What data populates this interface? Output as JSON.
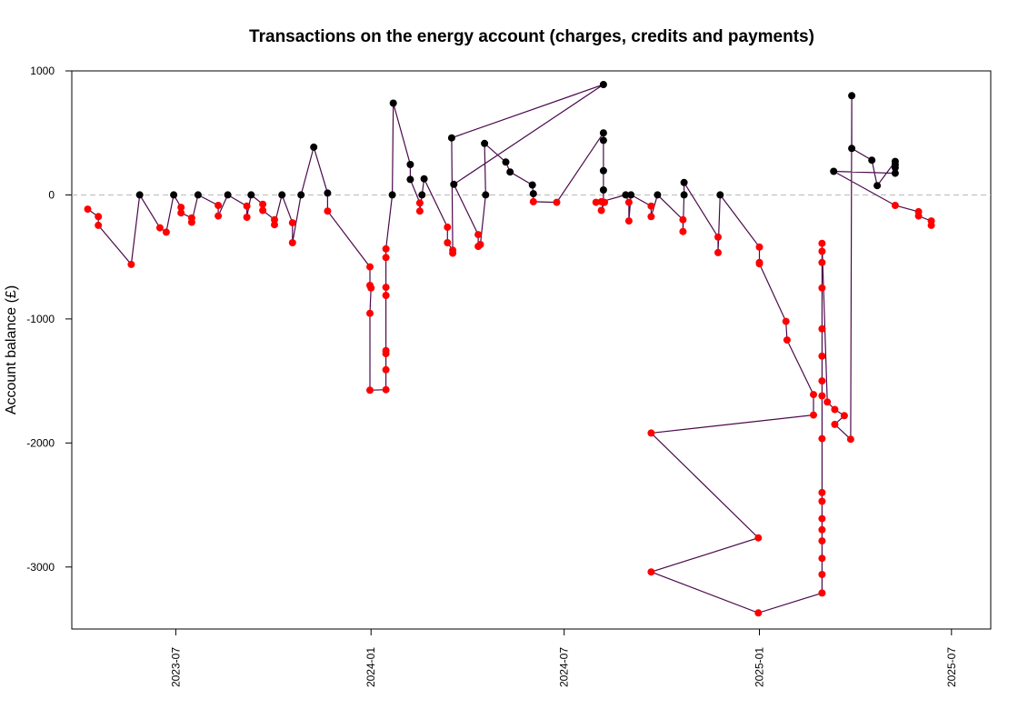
{
  "chart_data": {
    "type": "line",
    "title": "Transactions on the energy account (charges, credits and payments)",
    "xlabel": "",
    "ylabel": "Account balance (£)",
    "x_scale": "date",
    "xlim": [
      "2023-03-25",
      "2025-08-07"
    ],
    "ylim": [
      -3500,
      1000
    ],
    "x_ticks": [
      "2023-07-01",
      "2024-01-01",
      "2024-07-01",
      "2025-01-01",
      "2025-07-01"
    ],
    "x_tick_labels": [
      "2023-07",
      "2024-01",
      "2024-07",
      "2025-01",
      "2025-07"
    ],
    "y_ticks": [
      -3000,
      -2000,
      -1000,
      0,
      1000
    ],
    "y_tick_labels": [
      "-3000",
      "-2000",
      "-1000",
      "0",
      "1000"
    ],
    "grid": false,
    "reference_line": {
      "y": 0,
      "style": "dashed",
      "color": "#bbbbbb"
    },
    "colors": {
      "line": "#4b0a4b",
      "negative": "#ff0000",
      "non_negative": "#000000"
    },
    "series": [
      {
        "points": [
          [
            "2023-04-09",
            -115
          ],
          [
            "2023-04-19",
            -175
          ],
          [
            "2023-04-19",
            -245
          ],
          [
            "2023-05-20",
            -560
          ],
          [
            "2023-05-28",
            0
          ],
          [
            "2023-06-16",
            -265
          ],
          [
            "2023-06-22",
            -300
          ],
          [
            "2023-06-29",
            0
          ],
          [
            "2023-07-06",
            -100
          ],
          [
            "2023-07-06",
            -145
          ],
          [
            "2023-07-16",
            -185
          ],
          [
            "2023-07-16",
            -220
          ],
          [
            "2023-07-22",
            0
          ],
          [
            "2023-08-10",
            -85
          ],
          [
            "2023-08-10",
            -170
          ],
          [
            "2023-08-19",
            0
          ],
          [
            "2023-09-06",
            -90
          ],
          [
            "2023-09-06",
            -180
          ],
          [
            "2023-09-10",
            0
          ],
          [
            "2023-09-21",
            -75
          ],
          [
            "2023-09-21",
            -125
          ],
          [
            "2023-10-02",
            -200
          ],
          [
            "2023-10-02",
            -240
          ],
          [
            "2023-10-09",
            0
          ],
          [
            "2023-10-19",
            -225
          ],
          [
            "2023-10-19",
            -385
          ],
          [
            "2023-10-27",
            0
          ],
          [
            "2023-11-08",
            385
          ],
          [
            "2023-11-21",
            15
          ],
          [
            "2023-11-21",
            -130
          ],
          [
            "2023-12-31",
            -580
          ],
          [
            "2023-12-31",
            -730
          ],
          [
            "2024-01-01",
            -750
          ],
          [
            "2023-12-31",
            -955
          ],
          [
            "2023-12-31",
            -1575
          ],
          [
            "2024-01-15",
            -1570
          ],
          [
            "2024-01-15",
            -1410
          ],
          [
            "2024-01-15",
            -1280
          ],
          [
            "2024-01-15",
            -1255
          ],
          [
            "2024-01-15",
            -810
          ],
          [
            "2024-01-15",
            -745
          ],
          [
            "2024-01-15",
            -505
          ],
          [
            "2024-01-15",
            -435
          ],
          [
            "2024-01-21",
            0
          ],
          [
            "2024-01-22",
            740
          ],
          [
            "2024-02-07",
            245
          ],
          [
            "2024-02-07",
            125
          ],
          [
            "2024-02-16",
            -65
          ],
          [
            "2024-02-16",
            -130
          ],
          [
            "2024-02-18",
            0
          ],
          [
            "2024-02-20",
            130
          ],
          [
            "2024-03-13",
            -260
          ],
          [
            "2024-03-13",
            -385
          ],
          [
            "2024-03-18",
            -445
          ],
          [
            "2024-03-18",
            -470
          ],
          [
            "2024-03-17",
            460
          ],
          [
            "2024-08-07",
            890
          ],
          [
            "2024-03-19",
            85
          ],
          [
            "2024-04-11",
            -320
          ],
          [
            "2024-04-11",
            -415
          ],
          [
            "2024-04-13",
            -400
          ],
          [
            "2024-04-18",
            0
          ],
          [
            "2024-04-17",
            415
          ],
          [
            "2024-05-07",
            265
          ],
          [
            "2024-05-11",
            185
          ],
          [
            "2024-06-01",
            80
          ],
          [
            "2024-06-02",
            10
          ],
          [
            "2024-06-02",
            -55
          ],
          [
            "2024-06-24",
            -60
          ],
          [
            "2024-08-07",
            500
          ],
          [
            "2024-08-07",
            440
          ],
          [
            "2024-08-07",
            195
          ],
          [
            "2024-08-07",
            40
          ],
          [
            "2024-08-07",
            -60
          ],
          [
            "2024-08-05",
            -125
          ],
          [
            "2024-08-08",
            -60
          ],
          [
            "2024-07-31",
            -60
          ],
          [
            "2024-08-05",
            -55
          ],
          [
            "2024-08-28",
            0
          ],
          [
            "2024-08-31",
            -60
          ],
          [
            "2024-08-31",
            -210
          ],
          [
            "2024-09-02",
            0
          ],
          [
            "2024-09-21",
            -90
          ],
          [
            "2024-09-21",
            -175
          ],
          [
            "2024-09-27",
            0
          ],
          [
            "2024-10-21",
            -200
          ],
          [
            "2024-10-21",
            -295
          ],
          [
            "2024-10-22",
            0
          ],
          [
            "2024-10-22",
            100
          ],
          [
            "2024-11-23",
            -340
          ],
          [
            "2024-11-23",
            -465
          ],
          [
            "2024-11-25",
            0
          ],
          [
            "2025-01-01",
            -420
          ],
          [
            "2025-01-01",
            -545
          ],
          [
            "2025-01-01",
            -555
          ],
          [
            "2025-01-26",
            -1020
          ],
          [
            "2025-01-27",
            -1170
          ],
          [
            "2025-02-21",
            -1610
          ],
          [
            "2025-02-21",
            -1775
          ],
          [
            "2024-09-21",
            -1920
          ],
          [
            "2024-12-31",
            -2765
          ],
          [
            "2024-09-21",
            -3040
          ],
          [
            "2024-12-31",
            -3370
          ],
          [
            "2025-03-01",
            -3210
          ],
          [
            "2025-03-01",
            -3060
          ],
          [
            "2025-03-01",
            -2930
          ],
          [
            "2025-03-01",
            -2790
          ],
          [
            "2025-03-01",
            -2700
          ],
          [
            "2025-03-01",
            -2610
          ],
          [
            "2025-03-01",
            -2470
          ],
          [
            "2025-03-01",
            -2400
          ],
          [
            "2025-03-01",
            -1965
          ],
          [
            "2025-03-01",
            -1620
          ],
          [
            "2025-03-01",
            -1500
          ],
          [
            "2025-03-01",
            -1300
          ],
          [
            "2025-03-01",
            -1080
          ],
          [
            "2025-03-01",
            -750
          ],
          [
            "2025-03-01",
            -545
          ],
          [
            "2025-03-01",
            -455
          ],
          [
            "2025-03-01",
            -390
          ],
          [
            "2025-03-06",
            -1670
          ],
          [
            "2025-03-13",
            -1730
          ],
          [
            "2025-03-22",
            -1780
          ],
          [
            "2025-03-13",
            -1850
          ],
          [
            "2025-03-28",
            -1970
          ],
          [
            "2025-03-29",
            800
          ],
          [
            "2025-03-29",
            375
          ],
          [
            "2025-04-17",
            280
          ],
          [
            "2025-04-22",
            75
          ],
          [
            "2025-05-09",
            270
          ],
          [
            "2025-05-09",
            245
          ],
          [
            "2025-05-09",
            220
          ],
          [
            "2025-05-09",
            175
          ],
          [
            "2025-03-12",
            190
          ],
          [
            "2025-05-09",
            -85
          ],
          [
            "2025-05-31",
            -135
          ],
          [
            "2025-05-31",
            -170
          ],
          [
            "2025-06-12",
            -210
          ],
          [
            "2025-06-12",
            -245
          ]
        ]
      }
    ]
  }
}
